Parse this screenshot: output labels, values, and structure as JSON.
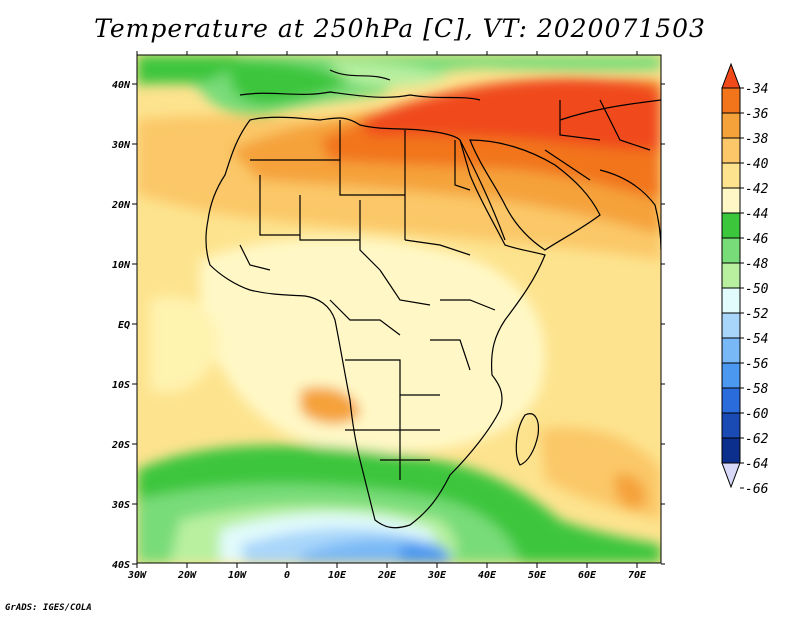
{
  "title": "Temperature at 250hPa [C], VT: 2020071503",
  "credit": "GrADS: IGES/COLA",
  "map": {
    "lon_ticks": [
      "30W",
      "20W",
      "10W",
      "0",
      "10E",
      "20E",
      "30E",
      "40E",
      "50E",
      "60E",
      "70E"
    ],
    "lat_ticks": [
      "40N",
      "30N",
      "20N",
      "10N",
      "EQ",
      "10S",
      "20S",
      "30S",
      "40S"
    ],
    "lon_range": [
      -30,
      75
    ],
    "lat_range": [
      -40,
      45
    ]
  },
  "colorbar": {
    "labels": [
      "-34",
      "-36",
      "-38",
      "-40",
      "-42",
      "-44",
      "-46",
      "-48",
      "-50",
      "-52",
      "-54",
      "-56",
      "-58",
      "-60",
      "-62",
      "-64",
      "-66"
    ],
    "colors": [
      "#f04a1a",
      "#f2751c",
      "#f5a23a",
      "#fbc768",
      "#fde38e",
      "#fff8c6",
      "#3cc63c",
      "#78dc78",
      "#b8f0a0",
      "#e2fbfc",
      "#a8d6fa",
      "#78b8f6",
      "#4a98f0",
      "#2a6cdc",
      "#1a4ab4",
      "#0c2e8c",
      "#0a1470"
    ]
  }
}
